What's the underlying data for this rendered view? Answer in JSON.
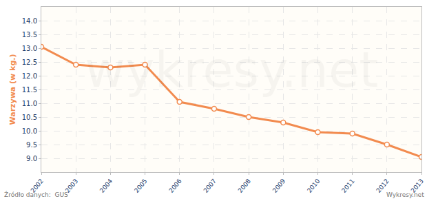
{
  "chart_data": {
    "type": "line",
    "y_label": "Warzywa (w kg.)",
    "x": [
      2002,
      2003,
      2004,
      2005,
      2006,
      2007,
      2008,
      2009,
      2010,
      2011,
      2012,
      2013
    ],
    "values": [
      13.05,
      12.4,
      12.3,
      12.4,
      11.05,
      10.8,
      10.5,
      10.3,
      9.95,
      9.9,
      9.5,
      9.05
    ],
    "color": "#f28b4f",
    "marker": "circle",
    "xlim": [
      2002,
      2013
    ],
    "xticks": [
      2002,
      2003,
      2004,
      2005,
      2006,
      2007,
      2008,
      2009,
      2010,
      2011,
      2012,
      2013
    ],
    "ylim": [
      8.5,
      14.5
    ],
    "yticks": [
      {
        "value": 9,
        "label": "9.0"
      },
      9.5,
      {
        "value": 10,
        "label": "10.0"
      },
      10.5,
      {
        "value": 11,
        "label": "11.0"
      },
      11.5,
      {
        "value": 12,
        "label": "12.0"
      },
      12.5,
      {
        "value": 13,
        "label": "13.0"
      },
      13.5,
      {
        "value": 14,
        "label": "14.0"
      }
    ],
    "grid": true,
    "source": "Źródło danych:  GUS",
    "credit": "Wykresy.net",
    "watermark": "wykresy.net"
  }
}
